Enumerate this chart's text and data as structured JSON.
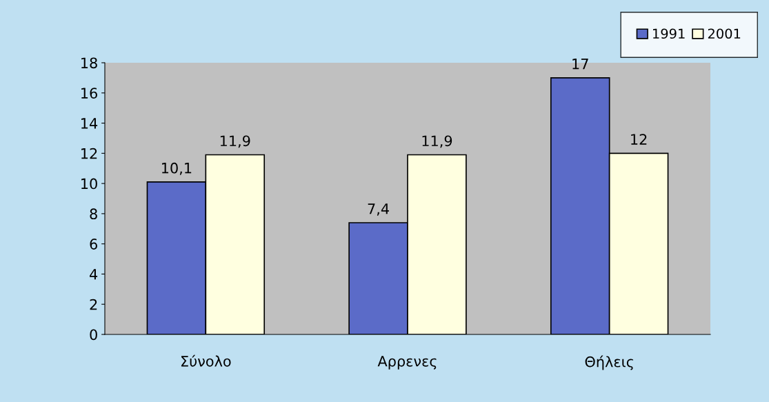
{
  "chart_data": {
    "type": "bar",
    "categories": [
      "Σύνολο",
      "Αρρενες",
      "Θήλεις"
    ],
    "series": [
      {
        "name": "1991",
        "color": "#5b6bc8",
        "values": [
          10.1,
          7.4,
          17
        ],
        "value_labels": [
          "10,1",
          "7,4",
          "17"
        ]
      },
      {
        "name": "2001",
        "color": "#ffffe0",
        "values": [
          11.9,
          11.9,
          12
        ],
        "value_labels": [
          "11,9",
          "11,9",
          "12"
        ]
      }
    ],
    "ylim": [
      0,
      18
    ],
    "yticks": [
      0,
      2,
      4,
      6,
      8,
      10,
      12,
      14,
      16,
      18
    ],
    "grid": false,
    "legend": "top right"
  }
}
